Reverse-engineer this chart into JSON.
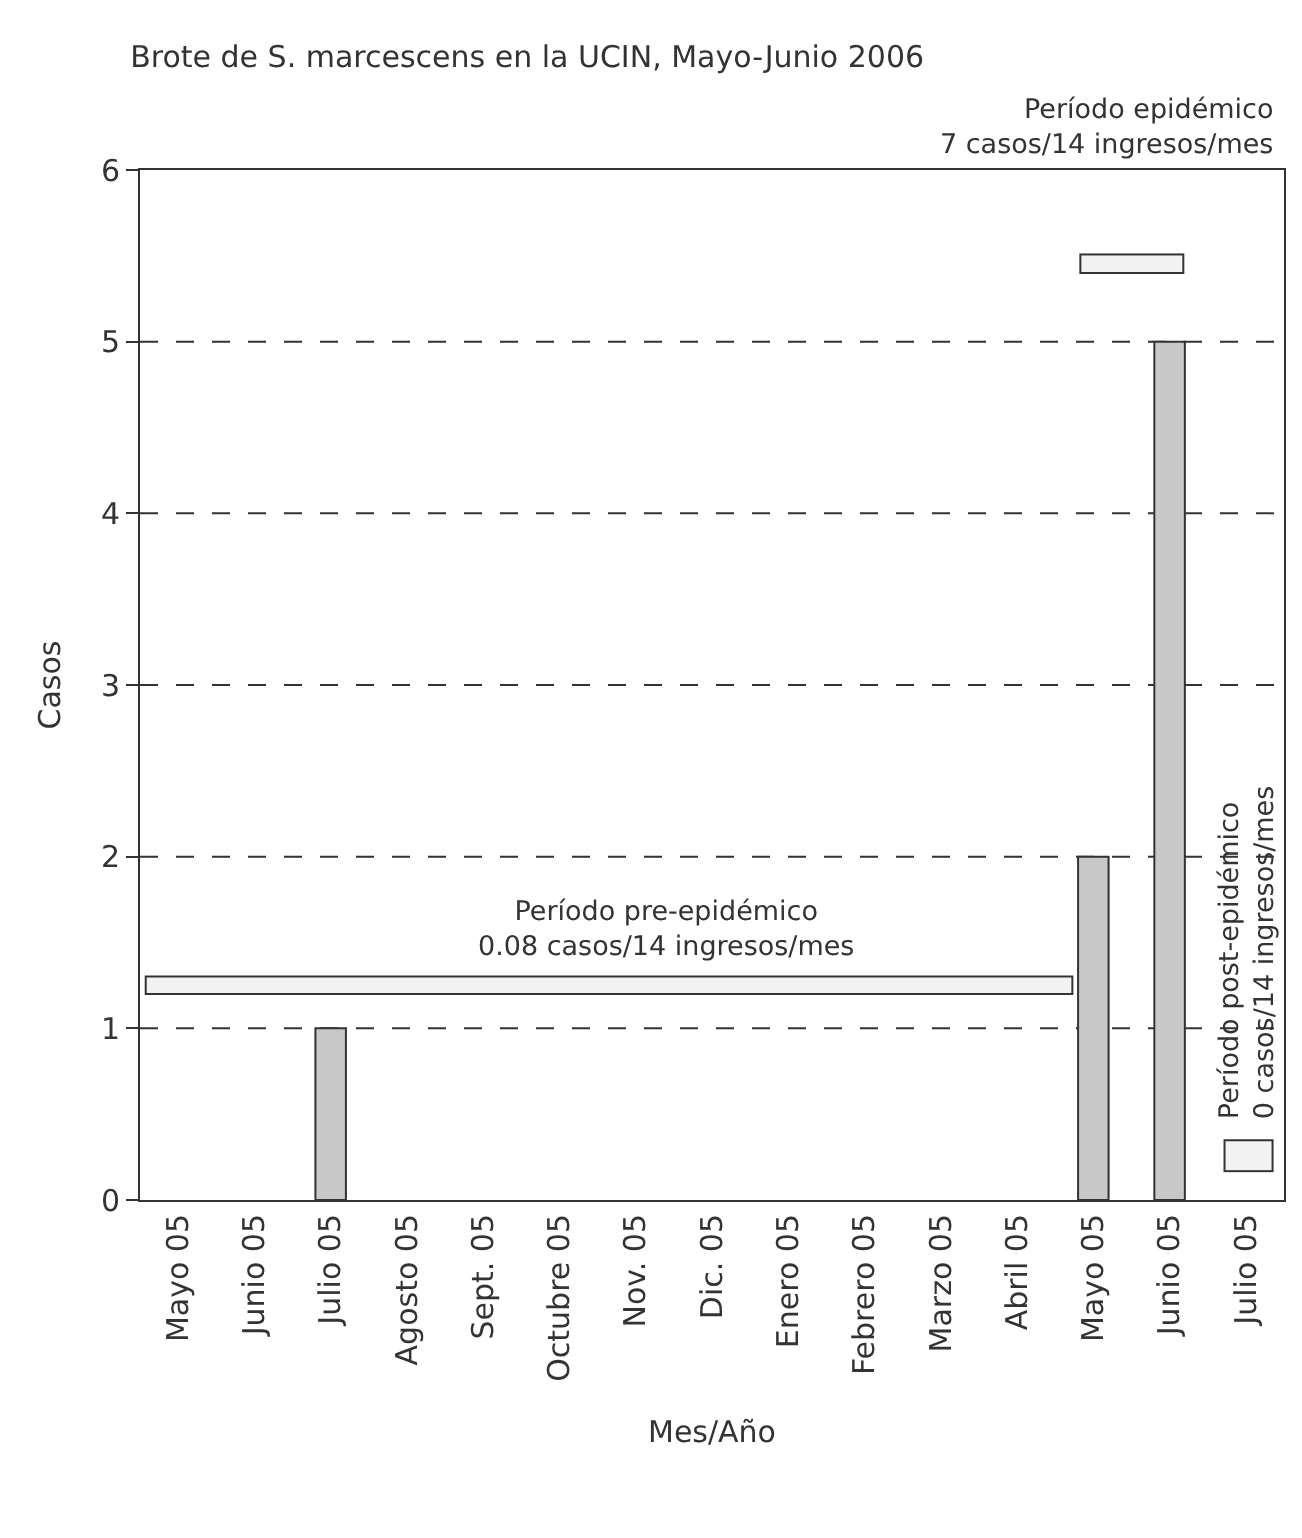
{
  "chart_data": {
    "type": "bar",
    "title": "Brote de S. marcescens en la UCIN, Mayo-Junio 2006",
    "xlabel": "Mes/Año",
    "ylabel": "Casos",
    "categories": [
      "Mayo 05",
      "Junio 05",
      "Julio 05",
      "Agosto 05",
      "Sept. 05",
      "Octubre 05",
      "Nov. 05",
      "Dic. 05",
      "Enero 05",
      "Febrero 05",
      "Marzo 05",
      "Abril 05",
      "Mayo 05",
      "Junio 05",
      "Julio 05"
    ],
    "values": [
      0,
      0,
      1,
      0,
      0,
      0,
      0,
      0,
      0,
      0,
      0,
      0,
      2,
      5,
      0
    ],
    "color": "#c8c8c8",
    "ylim": [
      0,
      6
    ],
    "yticks": [
      0,
      1,
      2,
      3,
      4,
      5,
      6
    ],
    "grid": "y",
    "annotations": [
      "Período pre-epidémico\n0.08 casos/14 ingresos/mes",
      "Período epidémico\n7 casos/14 ingresos/mes",
      "Período post-epidémico\n0 casos/14 ingresos/mes"
    ]
  }
}
